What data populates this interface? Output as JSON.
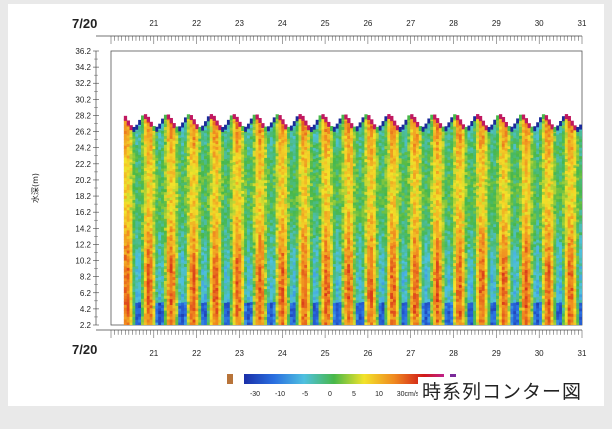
{
  "caption": "時系列コンター図",
  "chart_data": {
    "type": "heatmap",
    "title": "",
    "xlabel": "",
    "ylabel": "水深(m)",
    "x_start_label": "7/20",
    "x_ticks": [
      "21",
      "22",
      "23",
      "24",
      "25",
      "26",
      "27",
      "28",
      "29",
      "30",
      "31"
    ],
    "x_range": [
      20,
      31
    ],
    "y_ticks": [
      "2.2",
      "4.2",
      "6.2",
      "8.2",
      "10.2",
      "12.2",
      "14.2",
      "16.2",
      "18.2",
      "20.2",
      "22.2",
      "24.2",
      "26.2",
      "28.2",
      "30.2",
      "32.2",
      "34.2",
      "36.2"
    ],
    "y_range": [
      2.2,
      36.2
    ],
    "surface_depth_m": 27.2,
    "colorbar": {
      "labels": [
        "-30",
        "-10",
        "-5",
        "0",
        "5",
        "10",
        "30cm/s"
      ],
      "colors": [
        "#1a2fa8",
        "#2a6fe0",
        "#4fc0e0",
        "#48b84a",
        "#f2e32a",
        "#f08a20",
        "#d01818",
        "#c0208a"
      ],
      "range": [
        -30,
        30
      ],
      "unit": "cm/s"
    },
    "grid": false
  }
}
